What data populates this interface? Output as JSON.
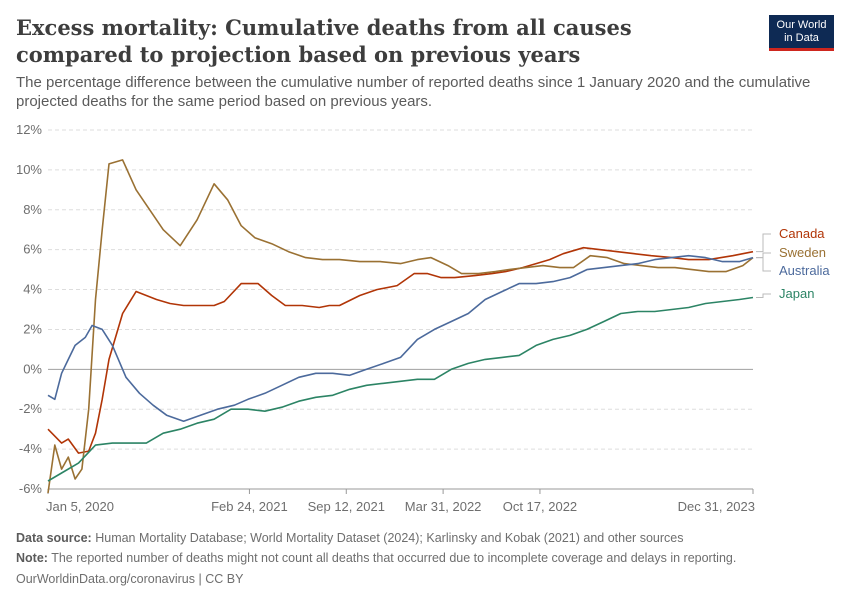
{
  "header": {
    "title": "Excess mortality: Cumulative deaths from all causes compared to projection based on previous years",
    "subtitle": "The percentage difference between the cumulative number of reported deaths since 1 January 2020 and the cumulative projected deaths for the same period based on previous years.",
    "logo_line1": "Our World",
    "logo_line2": "in Data"
  },
  "footer": {
    "source_label": "Data source:",
    "source_text": "Human Mortality Database; World Mortality Dataset (2024); Karlinsky and Kobak (2021) and other sources",
    "note_label": "Note:",
    "note_text": "The reported number of deaths might not count all deaths that occurred due to incomplete coverage and delays in reporting.",
    "license": "OurWorldinData.org/coronavirus | CC BY"
  },
  "colors": {
    "Canada": "#b13507",
    "Sweden": "#9a7133",
    "Australia": "#4c6a9c",
    "Japan": "#2c8465",
    "grid": "#dddddd",
    "zero": "#a1a1a1"
  },
  "chart_data": {
    "type": "line",
    "title": "Excess mortality: Cumulative deaths from all causes compared to projection based on previous years",
    "xlabel": "",
    "ylabel": "",
    "ylim": [
      -6,
      12
    ],
    "xlim": [
      "2020-01-05",
      "2023-12-31"
    ],
    "y_ticks": [
      -6,
      -4,
      -2,
      0,
      2,
      4,
      6,
      8,
      10,
      12
    ],
    "y_tick_labels": [
      "-6%",
      "-4%",
      "-2%",
      "0%",
      "2%",
      "4%",
      "6%",
      "8%",
      "10%",
      "12%"
    ],
    "x_ticks": [
      "2020-01-05",
      "2021-02-24",
      "2021-09-12",
      "2022-03-31",
      "2022-10-17",
      "2023-12-31"
    ],
    "x_tick_labels": [
      "Jan 5, 2020",
      "Feb 24, 2021",
      "Sep 12, 2021",
      "Mar 31, 2022",
      "Oct 17, 2022",
      "Dec 31, 2023"
    ],
    "grid": true,
    "legend": "right end labels",
    "series": [
      {
        "name": "Canada",
        "x": [
          "2020-01-05",
          "2020-02-02",
          "2020-02-16",
          "2020-03-08",
          "2020-03-29",
          "2020-04-12",
          "2020-04-26",
          "2020-05-10",
          "2020-06-07",
          "2020-07-05",
          "2020-08-16",
          "2020-09-13",
          "2020-10-11",
          "2020-11-15",
          "2020-12-13",
          "2021-01-03",
          "2021-02-07",
          "2021-03-14",
          "2021-04-11",
          "2021-05-09",
          "2021-06-13",
          "2021-07-18",
          "2021-08-08",
          "2021-08-29",
          "2021-10-10",
          "2021-11-14",
          "2021-12-26",
          "2022-01-30",
          "2022-02-27",
          "2022-03-27",
          "2022-04-24",
          "2022-06-05",
          "2022-07-10",
          "2022-08-07",
          "2022-09-11",
          "2022-10-09",
          "2022-11-06",
          "2022-12-04",
          "2023-01-15",
          "2023-02-19",
          "2023-03-26",
          "2023-04-30",
          "2023-06-04",
          "2023-07-16",
          "2023-08-20",
          "2023-10-01",
          "2023-11-19",
          "2023-12-31"
        ],
        "y": [
          -3.0,
          -3.7,
          -3.5,
          -4.2,
          -4.1,
          -3.2,
          -1.5,
          0.5,
          2.8,
          3.9,
          3.5,
          3.3,
          3.2,
          3.2,
          3.2,
          3.4,
          4.3,
          4.3,
          3.7,
          3.2,
          3.2,
          3.1,
          3.2,
          3.2,
          3.7,
          4.0,
          4.2,
          4.8,
          4.8,
          4.6,
          4.6,
          4.7,
          4.8,
          4.9,
          5.1,
          5.3,
          5.5,
          5.8,
          6.1,
          6.0,
          5.9,
          5.8,
          5.7,
          5.6,
          5.5,
          5.5,
          5.7,
          5.9
        ]
      },
      {
        "name": "Sweden",
        "x": [
          "2020-01-05",
          "2020-01-19",
          "2020-02-02",
          "2020-02-16",
          "2020-03-01",
          "2020-03-15",
          "2020-03-29",
          "2020-04-12",
          "2020-04-26",
          "2020-05-10",
          "2020-06-07",
          "2020-07-05",
          "2020-08-02",
          "2020-08-30",
          "2020-10-04",
          "2020-11-08",
          "2020-12-13",
          "2021-01-10",
          "2021-02-07",
          "2021-03-07",
          "2021-04-11",
          "2021-05-16",
          "2021-06-20",
          "2021-07-25",
          "2021-08-29",
          "2021-10-10",
          "2021-11-21",
          "2022-01-02",
          "2022-02-06",
          "2022-03-06",
          "2022-04-10",
          "2022-05-08",
          "2022-06-12",
          "2022-07-17",
          "2022-08-14",
          "2022-09-18",
          "2022-10-23",
          "2022-11-27",
          "2022-12-25",
          "2023-01-29",
          "2023-03-05",
          "2023-04-09",
          "2023-05-14",
          "2023-06-18",
          "2023-07-23",
          "2023-08-27",
          "2023-10-01",
          "2023-11-05",
          "2023-12-10",
          "2023-12-31"
        ],
        "y": [
          -6.2,
          -3.8,
          -5.0,
          -4.4,
          -5.5,
          -5.0,
          -2.0,
          3.5,
          7.0,
          10.3,
          10.5,
          9.0,
          8.0,
          7.0,
          6.2,
          7.5,
          9.3,
          8.5,
          7.2,
          6.6,
          6.3,
          5.9,
          5.6,
          5.5,
          5.5,
          5.4,
          5.4,
          5.3,
          5.5,
          5.6,
          5.2,
          4.8,
          4.8,
          4.9,
          5.0,
          5.1,
          5.2,
          5.1,
          5.1,
          5.7,
          5.6,
          5.3,
          5.2,
          5.1,
          5.1,
          5.0,
          4.9,
          4.9,
          5.2,
          5.6
        ]
      },
      {
        "name": "Australia",
        "x": [
          "2020-01-05",
          "2020-01-19",
          "2020-02-02",
          "2020-02-16",
          "2020-03-01",
          "2020-03-22",
          "2020-04-05",
          "2020-04-26",
          "2020-05-17",
          "2020-06-14",
          "2020-07-12",
          "2020-08-09",
          "2020-09-06",
          "2020-10-11",
          "2020-11-15",
          "2020-12-20",
          "2021-01-24",
          "2021-02-21",
          "2021-03-28",
          "2021-05-02",
          "2021-06-06",
          "2021-07-11",
          "2021-08-15",
          "2021-09-19",
          "2021-10-24",
          "2021-11-28",
          "2022-01-02",
          "2022-02-06",
          "2022-03-13",
          "2022-04-17",
          "2022-05-22",
          "2022-06-26",
          "2022-07-31",
          "2022-09-04",
          "2022-10-09",
          "2022-11-13",
          "2022-12-18",
          "2023-01-22",
          "2023-02-26",
          "2023-04-02",
          "2023-05-07",
          "2023-06-11",
          "2023-07-16",
          "2023-08-20",
          "2023-09-24",
          "2023-10-29",
          "2023-12-03",
          "2023-12-31"
        ],
        "y": [
          -1.3,
          -1.5,
          -0.2,
          0.5,
          1.2,
          1.6,
          2.2,
          2.0,
          1.2,
          -0.4,
          -1.2,
          -1.8,
          -2.3,
          -2.6,
          -2.3,
          -2.0,
          -1.8,
          -1.5,
          -1.2,
          -0.8,
          -0.4,
          -0.2,
          -0.2,
          -0.3,
          0.0,
          0.3,
          0.6,
          1.5,
          2.0,
          2.4,
          2.8,
          3.5,
          3.9,
          4.3,
          4.3,
          4.4,
          4.6,
          5.0,
          5.1,
          5.2,
          5.3,
          5.5,
          5.6,
          5.7,
          5.6,
          5.4,
          5.4,
          5.6
        ]
      },
      {
        "name": "Japan",
        "x": [
          "2020-01-05",
          "2020-02-02",
          "2020-03-08",
          "2020-04-12",
          "2020-05-17",
          "2020-06-21",
          "2020-07-26",
          "2020-08-30",
          "2020-10-04",
          "2020-11-08",
          "2020-12-13",
          "2021-01-17",
          "2021-02-21",
          "2021-03-28",
          "2021-05-02",
          "2021-06-06",
          "2021-07-11",
          "2021-08-15",
          "2021-09-19",
          "2021-10-24",
          "2021-11-28",
          "2022-01-02",
          "2022-02-06",
          "2022-03-13",
          "2022-04-17",
          "2022-05-22",
          "2022-06-26",
          "2022-07-31",
          "2022-09-04",
          "2022-10-09",
          "2022-11-13",
          "2022-12-18",
          "2023-01-22",
          "2023-02-26",
          "2023-04-02",
          "2023-05-07",
          "2023-06-11",
          "2023-07-16",
          "2023-08-20",
          "2023-09-24",
          "2023-10-29",
          "2023-12-03",
          "2023-12-31"
        ],
        "y": [
          -5.6,
          -5.2,
          -4.7,
          -3.8,
          -3.7,
          -3.7,
          -3.7,
          -3.2,
          -3.0,
          -2.7,
          -2.5,
          -2.0,
          -2.0,
          -2.1,
          -1.9,
          -1.6,
          -1.4,
          -1.3,
          -1.0,
          -0.8,
          -0.7,
          -0.6,
          -0.5,
          -0.5,
          0.0,
          0.3,
          0.5,
          0.6,
          0.7,
          1.2,
          1.5,
          1.7,
          2.0,
          2.4,
          2.8,
          2.9,
          2.9,
          3.0,
          3.1,
          3.3,
          3.4,
          3.5,
          3.6
        ]
      }
    ]
  }
}
